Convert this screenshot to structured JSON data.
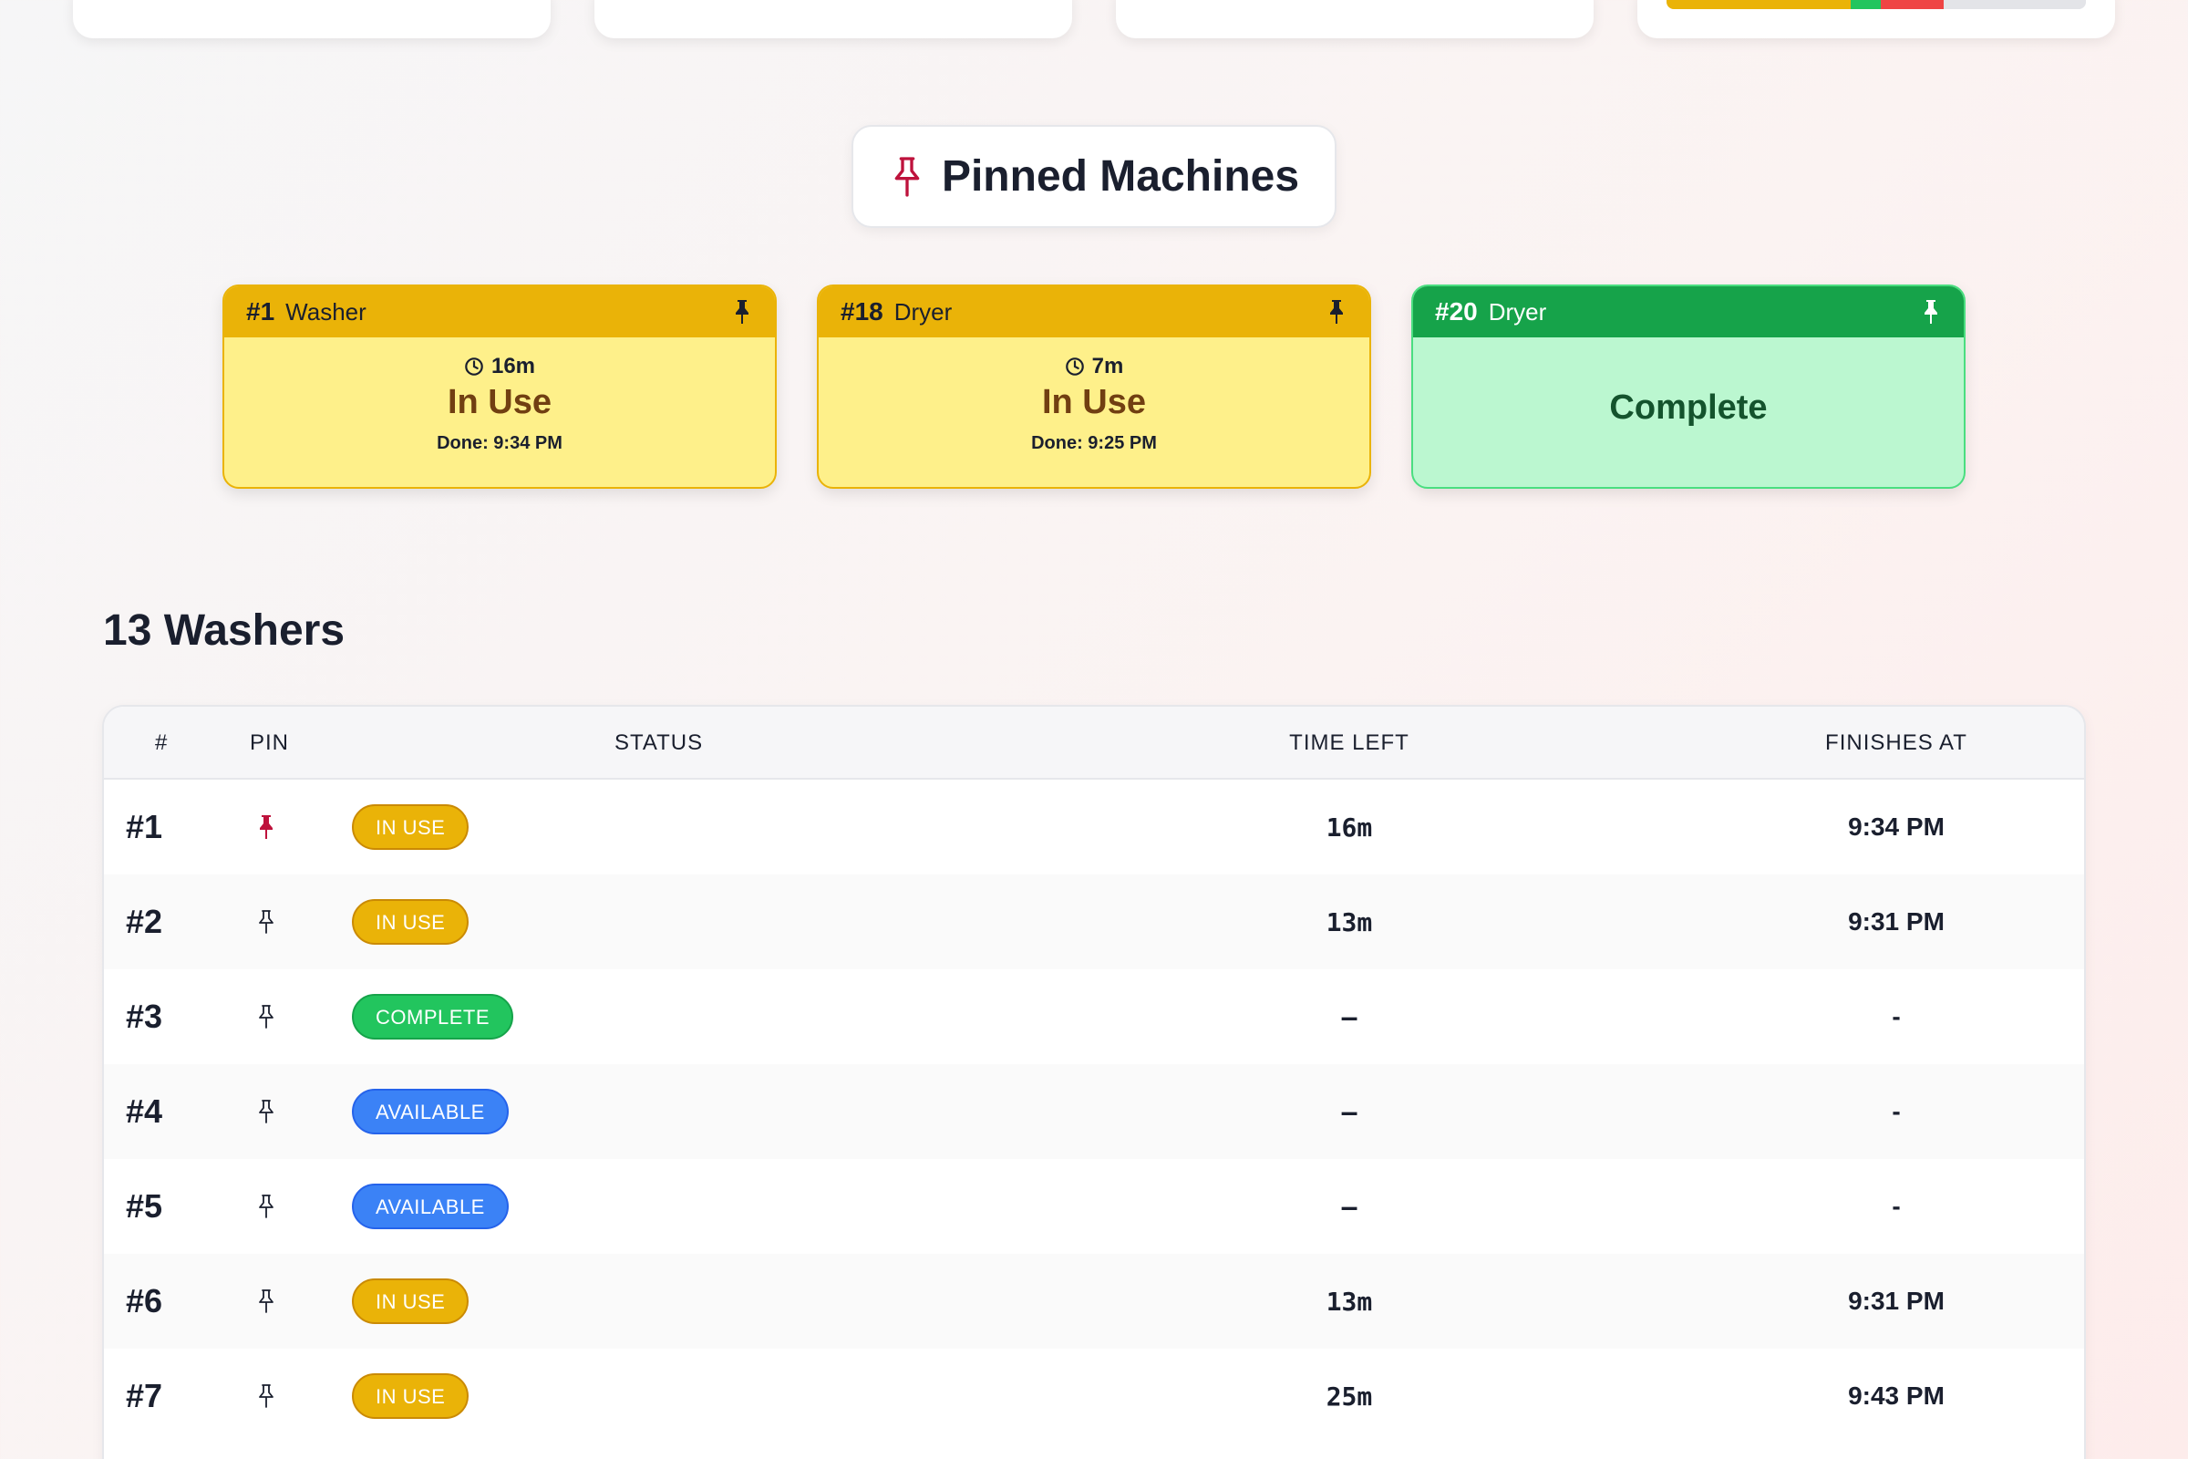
{
  "summary": {
    "status_bar": [
      {
        "status": "in-use",
        "fraction": 0.44,
        "color": "#eab308"
      },
      {
        "status": "complete",
        "fraction": 0.07,
        "color": "#22c55e"
      },
      {
        "status": "error",
        "fraction": 0.15,
        "color": "#ef4444"
      },
      {
        "status": "available",
        "fraction": 0.34,
        "color": "#e3e4e8"
      }
    ]
  },
  "pinned": {
    "title": "Pinned Machines",
    "icon": "pin-icon",
    "cards": [
      {
        "number": "#1",
        "type": "Washer",
        "time": "16m",
        "state": "In Use",
        "done": "Done: 9:34 PM",
        "kind": "inuse"
      },
      {
        "number": "#18",
        "type": "Dryer",
        "time": "7m",
        "state": "In Use",
        "done": "Done: 9:25 PM",
        "kind": "inuse"
      },
      {
        "number": "#20",
        "type": "Dryer",
        "time": "",
        "state": "Complete",
        "done": "",
        "kind": "done"
      }
    ]
  },
  "washers": {
    "title": "13 Washers",
    "columns": {
      "num": "#",
      "pin": "PIN",
      "status": "STATUS",
      "time_left": "TIME LEFT",
      "finishes_at": "FINISHES AT"
    },
    "rows": [
      {
        "num": "#1",
        "pinned": true,
        "status": "IN USE",
        "kind": "inuse",
        "time_left": "16m",
        "finishes_at": "9:34 PM"
      },
      {
        "num": "#2",
        "pinned": false,
        "status": "IN USE",
        "kind": "inuse",
        "time_left": "13m",
        "finishes_at": "9:31 PM"
      },
      {
        "num": "#3",
        "pinned": false,
        "status": "COMPLETE",
        "kind": "complete",
        "time_left": "–",
        "finishes_at": "-"
      },
      {
        "num": "#4",
        "pinned": false,
        "status": "AVAILABLE",
        "kind": "available",
        "time_left": "–",
        "finishes_at": "-"
      },
      {
        "num": "#5",
        "pinned": false,
        "status": "AVAILABLE",
        "kind": "available",
        "time_left": "–",
        "finishes_at": "-"
      },
      {
        "num": "#6",
        "pinned": false,
        "status": "IN USE",
        "kind": "inuse",
        "time_left": "13m",
        "finishes_at": "9:31 PM"
      },
      {
        "num": "#7",
        "pinned": false,
        "status": "IN USE",
        "kind": "inuse",
        "time_left": "25m",
        "finishes_at": "9:43 PM"
      }
    ]
  },
  "colors": {
    "accent_red": "#be123c",
    "in_use": "#eab308",
    "complete": "#16a34a",
    "available": "#3b82f6"
  }
}
